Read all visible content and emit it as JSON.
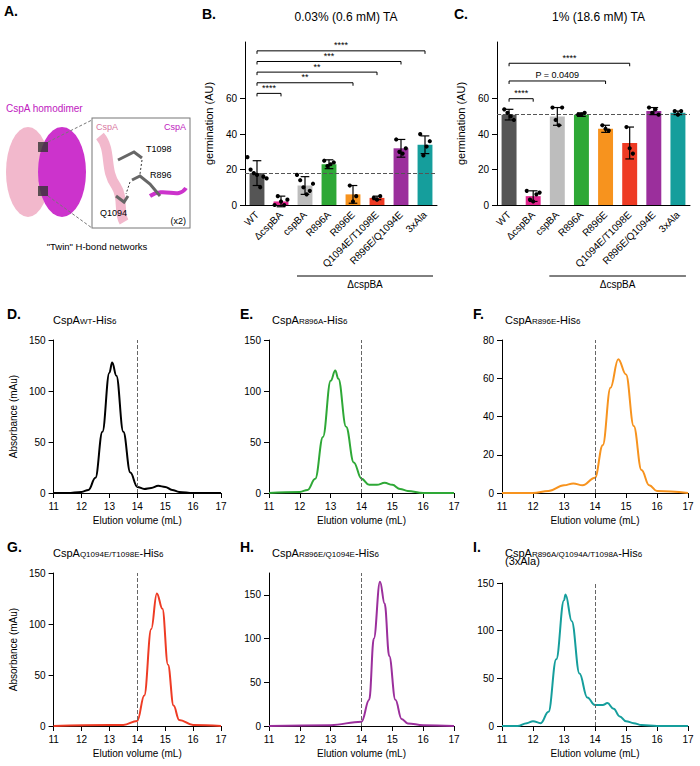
{
  "panel_a": {
    "panel": "A.",
    "title": "CspA homodimer",
    "inset_labels": {
      "chain_1": "CspA",
      "chain_2": "CspA",
      "residue_1": "T1098",
      "residue_2": "R896",
      "residue_3": "Q1094",
      "multiplicity": "(x2)"
    },
    "caption": "\"Twin\" H-bond networks"
  },
  "chart_data": [
    {
      "type": "bar",
      "panel": "B.",
      "title": "0.03% (0.6 mM) TA",
      "y_label": "germination (AU)",
      "categories": [
        "WT",
        "ΔcspBA",
        "cspBA",
        "R896A",
        "R896E",
        "Q1094E/T1098E",
        "R896E/Q1094E",
        "3xAla"
      ],
      "values": [
        18,
        2,
        11,
        23,
        6,
        4,
        32,
        34
      ],
      "errors": [
        7,
        3,
        5,
        2.5,
        5,
        1,
        5,
        5
      ],
      "points": [
        [
          27,
          20,
          18,
          17,
          10,
          16,
          15
        ],
        [
          0,
          5,
          2,
          0,
          3
        ],
        [
          17,
          14,
          10,
          6,
          8,
          12
        ],
        [
          25,
          22,
          23,
          24
        ],
        [
          11,
          2,
          5
        ],
        [
          4,
          3,
          5
        ],
        [
          37,
          30,
          29,
          32
        ],
        [
          40,
          28,
          33,
          36
        ]
      ],
      "colors": [
        "#555555",
        "#e0268e",
        "#bdbdbd",
        "#2ea836",
        "#f7931e",
        "#ee3b24",
        "#9b2f9c",
        "#159e9c"
      ],
      "reference_line": {
        "axis": "y",
        "value": 18
      },
      "comparisons": [
        {
          "from": "WT",
          "to": "ΔcspBA",
          "label": "****",
          "level": 63
        },
        {
          "from": "WT",
          "to": "R896E",
          "label": "**",
          "level": 69
        },
        {
          "from": "WT",
          "to": "Q1094E/T1098E",
          "label": "**",
          "level": 75
        },
        {
          "from": "WT",
          "to": "R896E/Q1094E",
          "label": "***",
          "level": 81
        },
        {
          "from": "WT",
          "to": "3xAla",
          "label": "****",
          "level": 87
        }
      ],
      "group_label": {
        "text": "ΔcspBA",
        "from": "cspBA",
        "to": "3xAla"
      },
      "ylim": [
        0,
        92
      ],
      "yticks": [
        0,
        20,
        40,
        60
      ],
      "grid": false
    },
    {
      "type": "bar",
      "panel": "C.",
      "title": "1% (18.6 mM) TA",
      "y_label": "germination (AU)",
      "categories": [
        "WT",
        "ΔcspBA",
        "cspBA",
        "R896A",
        "R896E",
        "Q1094E/T1098E",
        "R896E/Q1094E",
        "3xAla"
      ],
      "values": [
        51,
        5,
        50,
        51,
        43,
        35,
        53,
        52
      ],
      "errors": [
        3,
        3,
        5,
        1,
        2,
        9,
        2,
        1
      ],
      "points": [
        [
          54,
          52,
          50,
          48
        ],
        [
          8,
          3,
          2,
          6,
          7
        ],
        [
          55,
          48,
          45,
          55
        ],
        [
          51,
          51,
          52
        ],
        [
          45,
          43,
          42
        ],
        [
          44,
          32,
          29
        ],
        [
          55,
          52,
          54,
          51
        ],
        [
          53,
          51,
          53
        ]
      ],
      "colors": [
        "#555555",
        "#e0268e",
        "#bdbdbd",
        "#2ea836",
        "#f7931e",
        "#ee3b24",
        "#9b2f9c",
        "#159e9c"
      ],
      "reference_line": {
        "axis": "y",
        "value": 51
      },
      "comparisons": [
        {
          "from": "WT",
          "to": "ΔcspBA",
          "label": "****",
          "level": 60
        },
        {
          "from": "WT",
          "to": "R896E",
          "label": "P = 0.0409",
          "level": 70
        },
        {
          "from": "WT",
          "to": "Q1094E/T1098E",
          "label": "****",
          "level": 80
        }
      ],
      "group_label": {
        "text": "ΔcspBA",
        "from": "cspBA",
        "to": "3xAla"
      },
      "ylim": [
        0,
        92
      ],
      "yticks": [
        0,
        20,
        40,
        60
      ],
      "grid": false
    },
    {
      "type": "line",
      "panel": "D.",
      "title": [
        {
          "text": "CspA"
        },
        {
          "text": "WT",
          "sub": true
        },
        {
          "text": "-His"
        },
        {
          "text": "6",
          "sub": true
        }
      ],
      "x_label": "Elution volume (mL)",
      "y_label": "Absorbance (mAu)",
      "color": "#000000",
      "x": [
        11,
        11.5,
        12,
        12.25,
        12.5,
        12.75,
        13,
        13.1,
        13.25,
        13.5,
        13.75,
        14,
        14.25,
        14.5,
        14.75,
        15,
        15.25,
        15.5,
        16,
        17
      ],
      "values": [
        0,
        0,
        1,
        3,
        15,
        60,
        118,
        128,
        115,
        60,
        20,
        6,
        4,
        5,
        7,
        6,
        3,
        1,
        0,
        0
      ],
      "reference_line": {
        "axis": "x",
        "value": 14
      },
      "xlim": [
        11,
        17
      ],
      "xticks": [
        11,
        12,
        13,
        14,
        15,
        16,
        17
      ],
      "ylim": [
        0,
        150
      ],
      "yticks": [
        0,
        50,
        100,
        150
      ],
      "grid": false
    },
    {
      "type": "line",
      "panel": "E.",
      "title": [
        {
          "text": "CspA"
        },
        {
          "text": "R896A",
          "sub": true
        },
        {
          "text": "-His"
        },
        {
          "text": "6",
          "sub": true
        }
      ],
      "x_label": "Elution volume (mL)",
      "color": "#2ea836",
      "x": [
        11,
        12,
        12.25,
        12.5,
        12.75,
        13,
        13.15,
        13.25,
        13.5,
        13.75,
        14,
        14.25,
        14.5,
        14.75,
        15,
        15.25,
        15.5,
        16,
        17
      ],
      "values": [
        0,
        1,
        3,
        14,
        55,
        110,
        120,
        112,
        65,
        30,
        14,
        8,
        8,
        10,
        8,
        4,
        2,
        0,
        0
      ],
      "reference_line": {
        "axis": "x",
        "value": 14
      },
      "xlim": [
        11,
        17
      ],
      "xticks": [
        11,
        12,
        13,
        14,
        15,
        16,
        17
      ],
      "ylim": [
        0,
        150
      ],
      "yticks": [
        0,
        50,
        100,
        150
      ],
      "grid": false
    },
    {
      "type": "line",
      "panel": "F.",
      "title": [
        {
          "text": "CspA"
        },
        {
          "text": "R896E",
          "sub": true
        },
        {
          "text": "-His"
        },
        {
          "text": "6",
          "sub": true
        }
      ],
      "x_label": "Elution volume (mL)",
      "color": "#f7931e",
      "x": [
        11,
        12,
        12.5,
        13,
        13.3,
        13.6,
        14,
        14.25,
        14.5,
        14.75,
        15,
        15.25,
        15.5,
        15.75,
        16,
        17
      ],
      "values": [
        0,
        0,
        1,
        4,
        5,
        4,
        8,
        25,
        55,
        70,
        62,
        35,
        12,
        4,
        1,
        0
      ],
      "reference_line": {
        "axis": "x",
        "value": 14
      },
      "xlim": [
        11,
        17
      ],
      "xticks": [
        11,
        12,
        13,
        14,
        15,
        16,
        17
      ],
      "ylim": [
        0,
        80
      ],
      "yticks": [
        0,
        20,
        40,
        60,
        80
      ],
      "grid": false
    },
    {
      "type": "line",
      "panel": "G.",
      "title": [
        {
          "text": "CspA"
        },
        {
          "text": "Q1094E/T1098E",
          "sub": true
        },
        {
          "text": "-His"
        },
        {
          "text": "6",
          "sub": true
        }
      ],
      "x_label": "Elution volume (mL)",
      "y_label": "Absorbance (mAu)",
      "color": "#ee3b24",
      "x": [
        11,
        13,
        13.5,
        14,
        14.25,
        14.5,
        14.7,
        14.9,
        15.1,
        15.3,
        15.5,
        16,
        17
      ],
      "values": [
        0,
        1,
        1,
        5,
        30,
        95,
        130,
        115,
        60,
        20,
        6,
        1,
        0
      ],
      "reference_line": {
        "axis": "x",
        "value": 14
      },
      "xlim": [
        11,
        17
      ],
      "xticks": [
        11,
        12,
        13,
        14,
        15,
        16,
        17
      ],
      "ylim": [
        0,
        150
      ],
      "yticks": [
        0,
        50,
        100,
        150
      ],
      "grid": false
    },
    {
      "type": "line",
      "panel": "H.",
      "title": [
        {
          "text": "CspA"
        },
        {
          "text": "R896E/Q1094E",
          "sub": true
        },
        {
          "text": "-His"
        },
        {
          "text": "6",
          "sub": true
        }
      ],
      "x_label": "Elution volume (mL)",
      "color": "#9b2f9c",
      "x": [
        11,
        13,
        14,
        14.25,
        14.4,
        14.6,
        14.75,
        14.9,
        15.1,
        15.3,
        15.5,
        16,
        17
      ],
      "values": [
        0,
        1,
        5,
        30,
        100,
        165,
        140,
        80,
        30,
        8,
        3,
        1,
        0
      ],
      "reference_line": {
        "axis": "x",
        "value": 14
      },
      "xlim": [
        11,
        17
      ],
      "xticks": [
        11,
        12,
        13,
        14,
        15,
        16,
        17
      ],
      "ylim": [
        0,
        175
      ],
      "yticks": [
        0,
        50,
        100,
        150
      ],
      "grid": false
    },
    {
      "type": "line",
      "panel": "I.",
      "title": [
        {
          "text": "CspA"
        },
        {
          "text": "R896A/Q1094A/T1098A",
          "sub": true
        },
        {
          "text": "-His"
        },
        {
          "text": "6",
          "sub": true
        }
      ],
      "subtitle": "(3xAla)",
      "x_label": "Elution volume (mL)",
      "color": "#159e9c",
      "x": [
        11,
        11.5,
        11.8,
        12,
        12.25,
        12.5,
        12.75,
        13,
        13.05,
        13.25,
        13.5,
        13.75,
        14,
        14.25,
        14.4,
        14.6,
        14.8,
        15,
        15.25,
        15.5,
        16,
        17
      ],
      "values": [
        0,
        0,
        3,
        5,
        3,
        15,
        70,
        132,
        138,
        110,
        55,
        30,
        22,
        22,
        24,
        18,
        10,
        5,
        3,
        1,
        0,
        0
      ],
      "reference_line": {
        "axis": "x",
        "value": 14
      },
      "xlim": [
        11,
        17
      ],
      "xticks": [
        11,
        12,
        13,
        14,
        15,
        16,
        17
      ],
      "ylim": [
        0,
        150
      ],
      "yticks": [
        0,
        50,
        100,
        150
      ],
      "grid": false
    }
  ]
}
